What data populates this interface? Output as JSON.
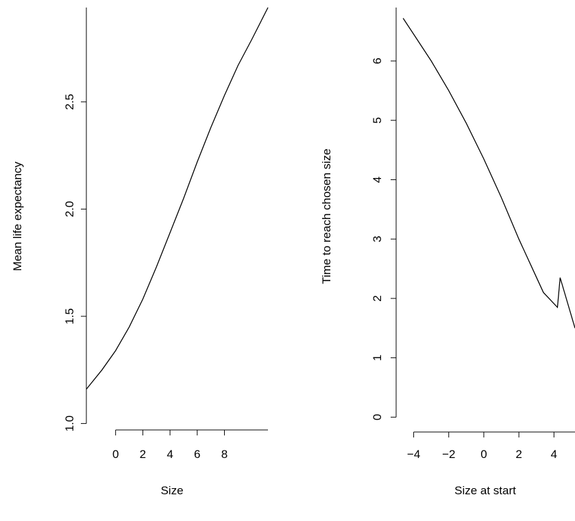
{
  "chart_data": [
    {
      "type": "line",
      "title": "",
      "xlabel": "Size",
      "ylabel": "Mean life expectancy",
      "xlim": [
        -2.15,
        11.2
      ],
      "ylim": [
        0.97,
        2.94
      ],
      "x_ticks": [
        0,
        2,
        4,
        6,
        8
      ],
      "x_tick_labels": [
        "0",
        "2",
        "4",
        "6",
        "8"
      ],
      "y_ticks": [
        1.0,
        1.5,
        2.0,
        2.5
      ],
      "y_tick_labels": [
        "1.0",
        "1.5",
        "2.0",
        "2.5"
      ],
      "axis_span": {
        "x": [
          0,
          11.2
        ],
        "y": [
          1.0,
          2.94
        ]
      },
      "grid": false,
      "series": [
        {
          "x": [
            -2.15,
            -1,
            0,
            1,
            2,
            3,
            4,
            5,
            6,
            7,
            8,
            9,
            10,
            11.2
          ],
          "y": [
            1.16,
            1.25,
            1.34,
            1.45,
            1.58,
            1.73,
            1.89,
            2.05,
            2.22,
            2.38,
            2.53,
            2.67,
            2.79,
            2.94
          ]
        }
      ]
    },
    {
      "type": "line",
      "title": "",
      "xlabel": "Size at start",
      "ylabel": "Time to reach chosen size",
      "xlim": [
        -5.0,
        5.2
      ],
      "ylim": [
        -0.25,
        6.9
      ],
      "x_ticks": [
        -4,
        -2,
        0,
        2,
        4
      ],
      "x_tick_labels": [
        "−4",
        "−2",
        "0",
        "2",
        "4"
      ],
      "y_ticks": [
        0,
        1,
        2,
        3,
        4,
        5,
        6
      ],
      "y_tick_labels": [
        "0",
        "1",
        "2",
        "3",
        "4",
        "5",
        "6"
      ],
      "axis_span": {
        "x": [
          -4,
          5.2
        ],
        "y": [
          0,
          6.9
        ]
      },
      "grid": false,
      "series": [
        {
          "x": [
            -4.6,
            -4,
            -3,
            -2,
            -1,
            0,
            1,
            2,
            2.7,
            3.4,
            4.2,
            4.35,
            5.2
          ],
          "y": [
            6.72,
            6.45,
            6.0,
            5.5,
            4.95,
            4.35,
            3.7,
            3.0,
            2.55,
            2.1,
            1.85,
            2.35,
            1.5
          ]
        }
      ]
    }
  ]
}
